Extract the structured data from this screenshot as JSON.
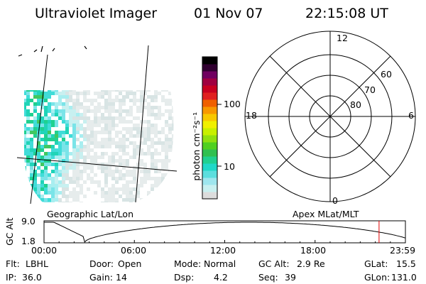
{
  "header": {
    "instrument": "Ultraviolet Imager",
    "date": "01 Nov 07",
    "time": "22:15:08 UT"
  },
  "colorbar": {
    "label": "photon cm⁻²s⁻¹",
    "ticks": [
      "100",
      "10"
    ],
    "scale": "log",
    "colors": [
      "#dcdcdc",
      "#c8f0f0",
      "#9ee6ee",
      "#5cdede",
      "#20d8c8",
      "#20d090",
      "#30c050",
      "#50d020",
      "#90e010",
      "#c8f000",
      "#f0f000",
      "#f8c800",
      "#f89800",
      "#f06000",
      "#e02020",
      "#c80020",
      "#a00040",
      "#700060",
      "#300030",
      "#000000"
    ]
  },
  "polar_plot": {
    "mlt_labels": {
      "top": "12",
      "left": "18",
      "right": "6",
      "bottom": "0"
    },
    "lat_labels": [
      "60",
      "70",
      "80"
    ]
  },
  "orbit_panel": {
    "ylabel": "GC Alt",
    "y_ticks": [
      "9.0",
      "1.8"
    ],
    "left_title": "Geographic Lat/Lon",
    "right_title": "Apex MLat/MLT",
    "x_ticks": [
      "00:00",
      "06:00",
      "12:00",
      "18:00",
      "23:59"
    ],
    "current_time_hours": 22.25,
    "marker_color": "#e00000"
  },
  "footer": {
    "row1": [
      {
        "key": "Flt:",
        "val": "LBHL"
      },
      {
        "key": "Door:",
        "val": "Open"
      },
      {
        "key": "Mode:",
        "val": "Normal"
      },
      {
        "key": "GC Alt:",
        "val": "2.9 Re"
      },
      {
        "key": "GLat:",
        "val": "15.5"
      }
    ],
    "row2": [
      {
        "key": "IP:",
        "val": "36.0"
      },
      {
        "key": "Gain:",
        "val": "14"
      },
      {
        "key": "Dsp:",
        "val": "4.2"
      },
      {
        "key": "Seq:",
        "val": "39"
      },
      {
        "key": "GLon:",
        "val": "131.0"
      }
    ]
  }
}
